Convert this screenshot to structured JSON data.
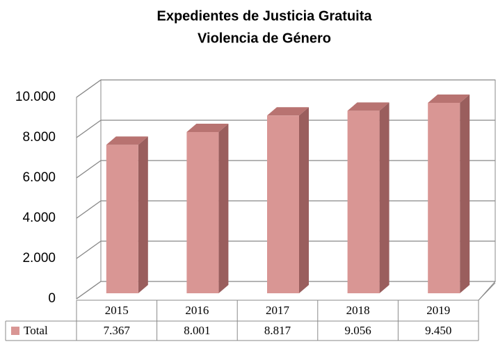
{
  "chart_data": {
    "type": "bar",
    "title": [
      "Expedientes de Justicia Gratuita",
      "Violencia de Género"
    ],
    "categories": [
      "2015",
      "2016",
      "2017",
      "2018",
      "2019"
    ],
    "series": [
      {
        "name": "Total",
        "color": "#d99694",
        "values": [
          7367,
          8001,
          8817,
          9056,
          9450
        ],
        "value_labels": [
          "7.367",
          "8.001",
          "8.817",
          "9.056",
          "9.450"
        ]
      }
    ],
    "ylim": [
      0,
      10000
    ],
    "yticks": [
      0,
      {
        "value": 2000,
        "label": "2.000"
      },
      {
        "value": 4000,
        "label": "4.000"
      },
      {
        "value": 6000,
        "label": "6.000"
      },
      {
        "value": 8000,
        "label": "8.000"
      },
      {
        "value": 10000,
        "label": "10.000"
      }
    ],
    "grid": true
  }
}
